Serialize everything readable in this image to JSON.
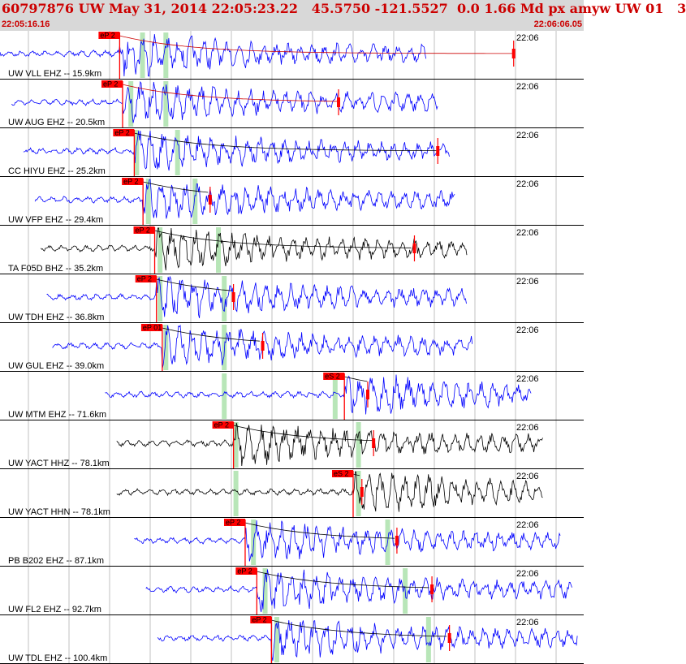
{
  "header": {
    "title": "60797876 UW May 31, 2014 22:05:23.22   45.5750 -121.5527  0.0 1.66 Md px amyw UW 01   3",
    "start_time": "22:05:16.16",
    "end_time": "22:06:06.05"
  },
  "colors": {
    "header_bg": "#d8d8d8",
    "header_text": "#cc0000",
    "waveform_blue": "#0000ff",
    "waveform_black": "#000000",
    "pick_red": "#ff0000",
    "window_green": "#b8e6b8",
    "coda_red": "#cc0000"
  },
  "traces": [
    {
      "label": "UW VLL EHZ -- 15.9km",
      "time_label": "22:06",
      "pick_label": "eP 2",
      "color": "blue",
      "wave_start": 0.0,
      "wave_end": 0.73,
      "pick_at": 0.205,
      "green": [
        0.24,
        0.28
      ],
      "coda_end": 0.88
    },
    {
      "label": "UW AUG EHZ -- 20.5km",
      "time_label": "22:06",
      "pick_label": "eP 2",
      "color": "blue",
      "wave_start": 0.02,
      "wave_end": 0.75,
      "pick_at": 0.21,
      "green": [
        0.22,
        0.28
      ],
      "coda_end": 0.58
    },
    {
      "label": "CC HIYU EHZ -- 25.2km",
      "time_label": "22:06",
      "pick_label": "eP 2",
      "color": "blue",
      "wave_start": 0.04,
      "wave_end": 0.77,
      "pick_at": 0.23,
      "green": [
        0.23,
        0.3
      ],
      "coda_end": 0.75
    },
    {
      "label": "UW VFP EHZ -- 29.4km",
      "time_label": "22:06",
      "pick_label": "eP 2",
      "color": "blue",
      "wave_start": 0.06,
      "wave_end": 0.78,
      "pick_at": 0.245,
      "green": [
        0.25,
        0.33
      ],
      "coda_end": 0.36
    },
    {
      "label": "TA F05D BHZ -- 35.2km",
      "time_label": "22:06",
      "pick_label": "eP 2",
      "color": "black",
      "wave_start": 0.07,
      "wave_end": 0.8,
      "pick_at": 0.265,
      "green": [
        0.27,
        0.37
      ],
      "coda_end": 0.71
    },
    {
      "label": "UW TDH EHZ -- 36.8km",
      "time_label": "22:06",
      "pick_label": "eP 2",
      "color": "blue",
      "wave_start": 0.08,
      "wave_end": 0.8,
      "pick_at": 0.268,
      "green": [
        0.27,
        0.38
      ],
      "coda_end": 0.4
    },
    {
      "label": "UW GUL EHZ -- 39.0km",
      "time_label": "22:06",
      "pick_label": "eP 01",
      "color": "blue",
      "wave_start": 0.09,
      "wave_end": 0.81,
      "pick_at": 0.278,
      "green": [
        0.28,
        0.38
      ],
      "coda_end": 0.45
    },
    {
      "label": "UW MTM EHZ -- 71.6km",
      "time_label": "22:06",
      "pick_label": "eS 2",
      "color": "blue",
      "wave_start": 0.18,
      "wave_end": 0.91,
      "pick_at": 0.59,
      "green": [
        0.38,
        0.57
      ],
      "coda_end": 0.63
    },
    {
      "label": "UW YACT HHZ -- 78.1km",
      "time_label": "22:06",
      "pick_label": "eP 2",
      "color": "black",
      "wave_start": 0.2,
      "wave_end": 0.93,
      "pick_at": 0.4,
      "green": [
        0.4,
        0.61
      ],
      "coda_end": 0.64
    },
    {
      "label": "UW YACT HHN -- 78.1km",
      "time_label": "22:06",
      "pick_label": "eS 2",
      "color": "black",
      "wave_start": 0.2,
      "wave_end": 0.93,
      "pick_at": 0.605,
      "green": [
        0.4,
        0.61
      ],
      "coda_end": 0.62
    },
    {
      "label": "PB B202 EHZ -- 87.1km",
      "time_label": "22:06",
      "pick_label": "eP 2",
      "color": "blue",
      "wave_start": 0.23,
      "wave_end": 0.96,
      "pick_at": 0.42,
      "green": [
        0.43,
        0.66
      ],
      "coda_end": 0.68
    },
    {
      "label": "UW FL2 EHZ -- 92.7km",
      "time_label": "22:06",
      "pick_label": "eP 2",
      "color": "blue",
      "wave_start": 0.25,
      "wave_end": 0.98,
      "pick_at": 0.44,
      "green": [
        0.45,
        0.69
      ],
      "coda_end": 0.74
    },
    {
      "label": "UW TDL EHZ -- 100.4km",
      "time_label": "22:06",
      "pick_label": "eP 2",
      "color": "blue",
      "wave_start": 0.27,
      "wave_end": 0.99,
      "pick_at": 0.465,
      "green": [
        0.47,
        0.73
      ],
      "coda_end": 0.77
    }
  ]
}
